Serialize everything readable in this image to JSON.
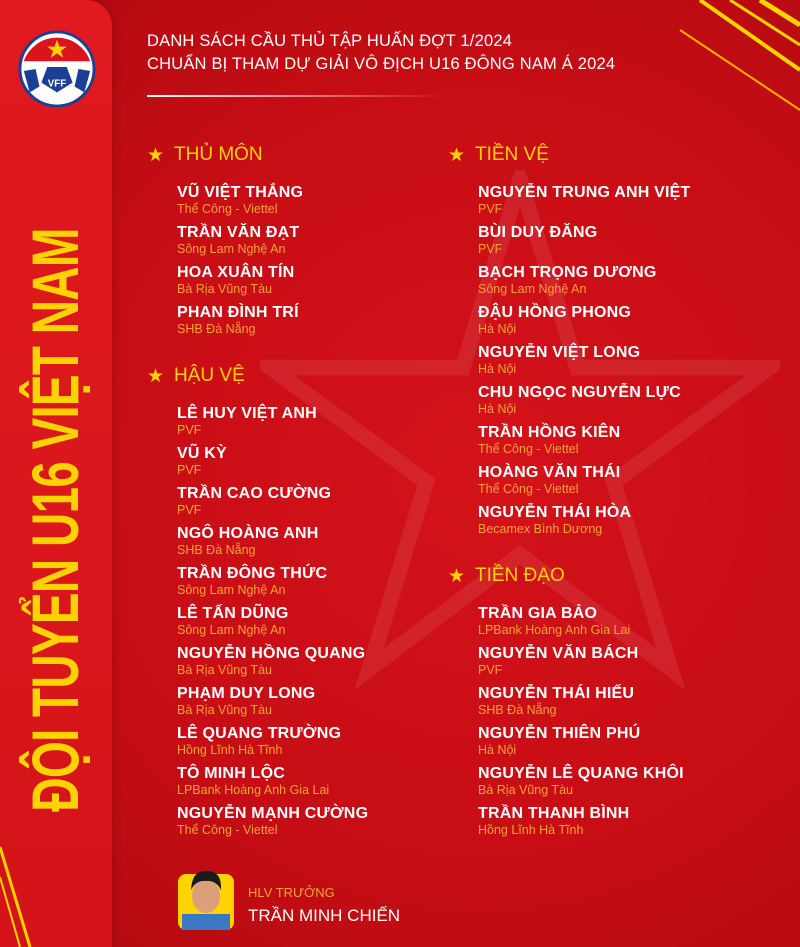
{
  "logo_text": "VFF",
  "sidebar_title": "ĐỘI TUYỂN U16 VIỆT NAM",
  "header": {
    "line1": "DANH SÁCH CẦU THỦ TẬP HUẤN ĐỢT 1/2024",
    "line2": "CHUẨN BỊ THAM DỰ GIẢI VÔ ĐỊCH U16 ĐÔNG NAM Á 2024"
  },
  "colors": {
    "background": "#c80d15",
    "accent": "#ffd200",
    "club": "#f7a233",
    "text": "#ffffff"
  },
  "sections": [
    {
      "title": "THỦ MÔN",
      "players": [
        {
          "name": "VŨ VIỆT THẮNG",
          "club": "Thể Công - Viettel"
        },
        {
          "name": "TRẦN VĂN ĐẠT",
          "club": "Sông Lam Nghệ An"
        },
        {
          "name": "HOA XUÂN TÍN",
          "club": "Bà Rịa Vũng Tàu"
        },
        {
          "name": "PHAN ĐÌNH TRÍ",
          "club": "SHB Đà Nẵng"
        }
      ]
    },
    {
      "title": "HẬU VỆ",
      "players": [
        {
          "name": "LÊ HUY VIỆT ANH",
          "club": "PVF"
        },
        {
          "name": "VŨ KỲ",
          "club": "PVF"
        },
        {
          "name": "TRẦN CAO CƯỜNG",
          "club": "PVF"
        },
        {
          "name": "NGÔ HOÀNG ANH",
          "club": "SHB Đà Nẵng"
        },
        {
          "name": "TRẦN ĐÔNG THỨC",
          "club": "Sông Lam Nghệ An"
        },
        {
          "name": "LÊ TẤN DŨNG",
          "club": "Sông Lam Nghệ An"
        },
        {
          "name": "NGUYỄN HỒNG QUANG",
          "club": "Bà Rịa Vũng Tàu"
        },
        {
          "name": "PHẠM DUY LONG",
          "club": "Bà Rịa Vũng Tàu"
        },
        {
          "name": "LÊ QUANG TRƯỜNG",
          "club": "Hồng Lĩnh Hà Tĩnh"
        },
        {
          "name": "TÔ MINH LỘC",
          "club": "LPBank Hoàng Anh Gia Lai"
        },
        {
          "name": "NGUYỄN MẠNH CƯỜNG",
          "club": "Thể Công - Viettel"
        }
      ]
    },
    {
      "title": "TIỀN VỆ",
      "players": [
        {
          "name": "NGUYỄN TRUNG ANH VIỆT",
          "club": "PVF"
        },
        {
          "name": "BÙI DUY ĐĂNG",
          "club": "PVF"
        },
        {
          "name": "BẠCH TRỌNG DƯƠNG",
          "club": "Sông Lam Nghệ An"
        },
        {
          "name": "ĐẬU HỒNG PHONG",
          "club": "Hà Nội"
        },
        {
          "name": "NGUYỄN VIỆT LONG",
          "club": "Hà Nội"
        },
        {
          "name": "CHU NGỌC NGUYỄN LỰC",
          "club": "Hà Nội"
        },
        {
          "name": "TRẦN HỒNG KIÊN",
          "club": "Thể Công - Viettel"
        },
        {
          "name": "HOÀNG VĂN THÁI",
          "club": "Thể Công - Viettel"
        },
        {
          "name": "NGUYỄN THÁI HÒA",
          "club": "Becamex Bình Dương"
        }
      ]
    },
    {
      "title": "TIỀN ĐẠO",
      "players": [
        {
          "name": "TRẦN GIA BẢO",
          "club": "LPBank Hoàng Anh Gia Lai"
        },
        {
          "name": "NGUYỄN VĂN BÁCH",
          "club": "PVF"
        },
        {
          "name": "NGUYỄN THÁI HIẾU",
          "club": "SHB Đà Nẵng"
        },
        {
          "name": "NGUYỄN THIÊN PHÚ",
          "club": "Hà Nội"
        },
        {
          "name": "NGUYỄN LÊ QUANG KHÔI",
          "club": "Bà Rịa Vũng Tàu"
        },
        {
          "name": "TRẦN THANH BÌNH",
          "club": "Hồng Lĩnh Hà Tĩnh"
        }
      ]
    }
  ],
  "coach": {
    "role": "HLV TRƯỞNG",
    "name": "TRẦN MINH CHIẾN"
  }
}
